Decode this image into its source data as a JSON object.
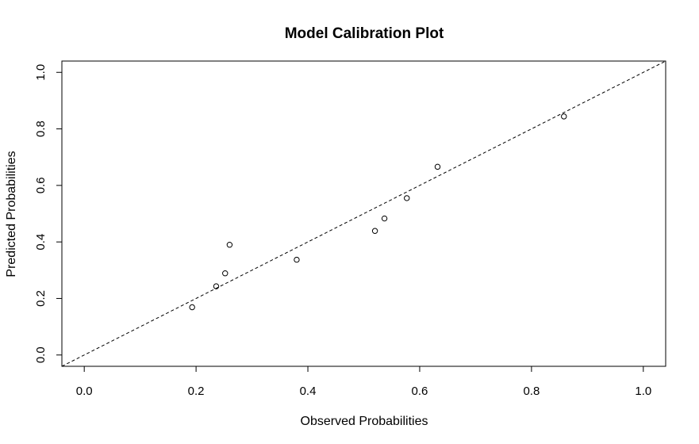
{
  "chart_data": {
    "type": "scatter",
    "title": "Model Calibration Plot",
    "xlabel": "Observed Probabilities",
    "ylabel": "Predicted Probabilities",
    "xlim": [
      -0.04,
      1.04
    ],
    "ylim": [
      -0.04,
      1.04
    ],
    "xticks": [
      0.0,
      0.2,
      0.4,
      0.6,
      0.8,
      1.0
    ],
    "yticks": [
      0.0,
      0.2,
      0.4,
      0.6,
      0.8,
      1.0
    ],
    "xtick_labels": [
      "0.0",
      "0.2",
      "0.4",
      "0.6",
      "0.8",
      "1.0"
    ],
    "ytick_labels": [
      "0.0",
      "0.2",
      "0.4",
      "0.6",
      "0.8",
      "1.0"
    ],
    "grid": false,
    "points": [
      {
        "x": 0.193,
        "y": 0.169
      },
      {
        "x": 0.236,
        "y": 0.243
      },
      {
        "x": 0.252,
        "y": 0.289
      },
      {
        "x": 0.26,
        "y": 0.39
      },
      {
        "x": 0.38,
        "y": 0.337
      },
      {
        "x": 0.52,
        "y": 0.439
      },
      {
        "x": 0.537,
        "y": 0.483
      },
      {
        "x": 0.577,
        "y": 0.555
      },
      {
        "x": 0.632,
        "y": 0.666
      },
      {
        "x": 0.858,
        "y": 0.844
      }
    ],
    "reference_line": {
      "style": "dashed",
      "intercept": 0,
      "slope": 1
    },
    "marker": "open-circle",
    "colors": {
      "points": "#000000",
      "line": "#000000",
      "frame": "#000000"
    }
  }
}
